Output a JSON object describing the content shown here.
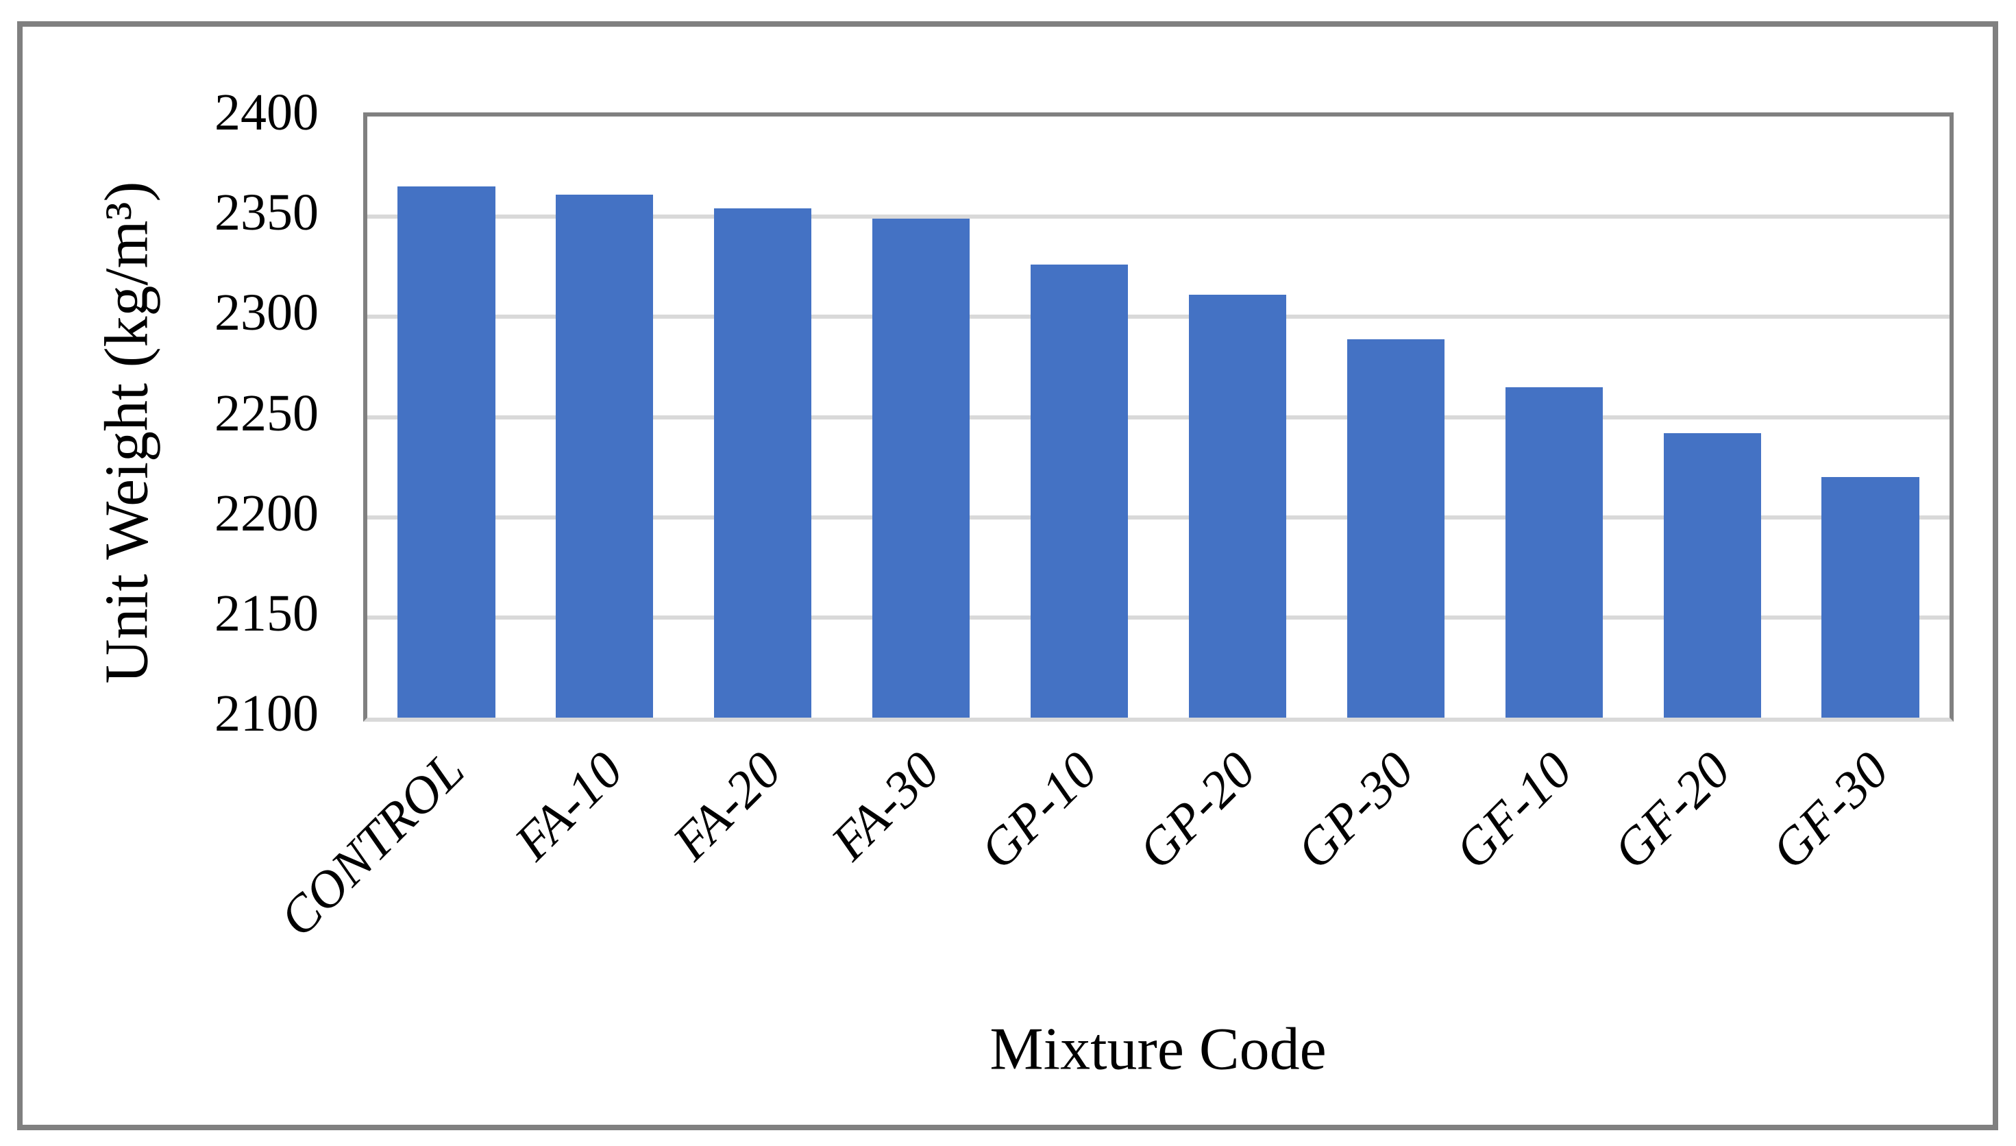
{
  "chart_data": {
    "type": "bar",
    "title": "",
    "categories": [
      "CONTROL",
      "FA-10",
      "FA-20",
      "FA-30",
      "GP-10",
      "GP-20",
      "GP-30",
      "GF-10",
      "GF-20",
      "GF-30"
    ],
    "values": [
      2365,
      2361,
      2354,
      2349,
      2326,
      2311,
      2289,
      2265,
      2242,
      2220
    ],
    "xlabel": "Mixture Code",
    "ylabel": "Unit Weight (kg/m³)",
    "ylim": [
      2100,
      2400
    ],
    "y_tick_step": 50,
    "y_ticks": [
      2400,
      2350,
      2300,
      2250,
      2200,
      2150,
      2100
    ],
    "grid": "horizontal-gridlines-on",
    "legend": "none",
    "bar_color": "#4472C4",
    "gridline_color": "#D9D9D9",
    "axis_line_color": "#808080",
    "outer_border_color": "#808080"
  }
}
